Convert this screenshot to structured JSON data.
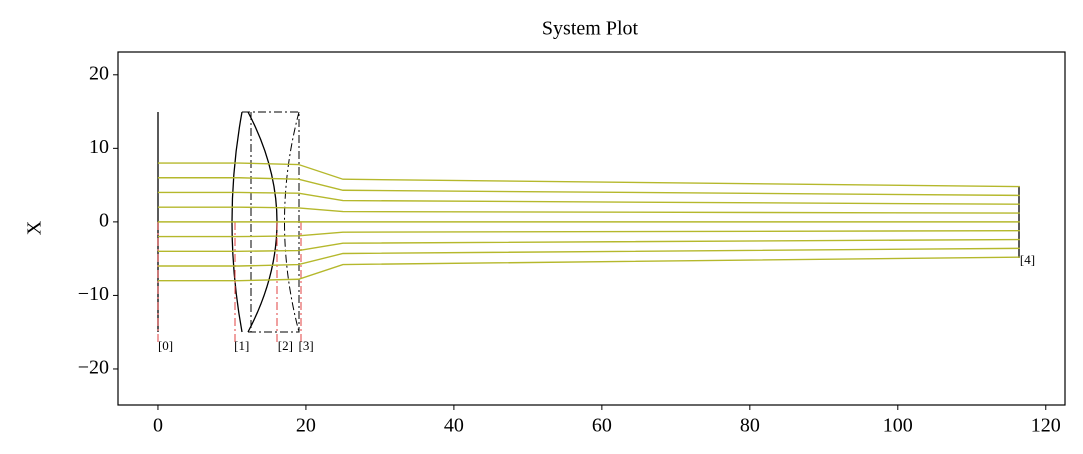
{
  "chart_data": {
    "type": "line",
    "title": "System Plot",
    "y_label": "X",
    "x": [
      0,
      11,
      19,
      25,
      116.5
    ],
    "series": [
      {
        "color": "#b5b82c",
        "values": [
          8,
          8,
          7.8,
          5.8,
          4.8
        ]
      },
      {
        "color": "#b5b82c",
        "values": [
          6,
          6,
          5.8,
          4.3,
          3.6
        ]
      },
      {
        "color": "#b5b82c",
        "values": [
          4,
          4,
          3.9,
          2.9,
          2.4
        ]
      },
      {
        "color": "#b5b82c",
        "values": [
          2,
          2,
          1.9,
          1.4,
          1.2
        ]
      },
      {
        "color": "#b5b82c",
        "values": [
          0,
          0,
          0,
          0,
          0
        ]
      },
      {
        "color": "#b5b82c",
        "values": [
          -2,
          -2,
          -1.9,
          -1.4,
          -1.2
        ]
      },
      {
        "color": "#b5b82c",
        "values": [
          -4,
          -4,
          -3.9,
          -2.9,
          -2.4
        ]
      },
      {
        "color": "#b5b82c",
        "values": [
          -6,
          -6,
          -5.8,
          -4.3,
          -3.6
        ]
      },
      {
        "color": "#b5b82c",
        "values": [
          -8,
          -8,
          -7.8,
          -5.8,
          -4.8
        ]
      }
    ],
    "annotations": [
      {
        "text": "[0]",
        "x": 0,
        "y": -17
      },
      {
        "text": "[1]",
        "x": 10.3,
        "y": -17
      },
      {
        "text": "[2]",
        "x": 16.2,
        "y": -17
      },
      {
        "text": "[3]",
        "x": 19,
        "y": -17
      },
      {
        "text": "[4]",
        "x": 116.5,
        "y": -5.3
      }
    ],
    "xlim": [
      -5.4,
      122.6
    ],
    "ylim": [
      -24.9,
      23.1
    ],
    "xticks": [
      0,
      20,
      40,
      60,
      80,
      100,
      120
    ],
    "yticks": [
      {
        "value": -20,
        "label": "−20"
      },
      {
        "value": -10,
        "label": "−10"
      },
      0,
      10,
      20
    ]
  }
}
